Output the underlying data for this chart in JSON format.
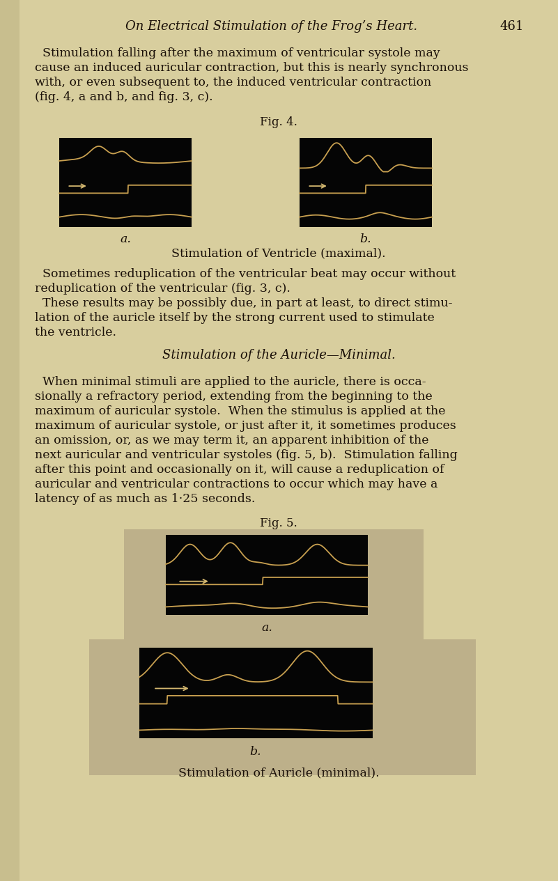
{
  "bg_color": "#d8ce9e",
  "text_color": "#1a1008",
  "header_title": "On Electrical Stimulation of the Frog’s Heart.",
  "header_page": "461",
  "fig4_title": "Fig. 4.",
  "fig4_caption": "Stimulation of Ventricle (maximal).",
  "fig4a_label": "a.",
  "fig4b_label": "b.",
  "fig5_title": "Fig. 5.",
  "fig5a_label": "a.",
  "fig5b_label": "b.",
  "fig5_caption": "Stimulation of Auricle (minimal).",
  "section_title": "Stimulation of the Auricle—Minimal.",
  "curve_color": "#c8a050",
  "arrow_color": "#d4b870",
  "box_bg": "#050505",
  "light_panel_bg": "#bdb08a"
}
